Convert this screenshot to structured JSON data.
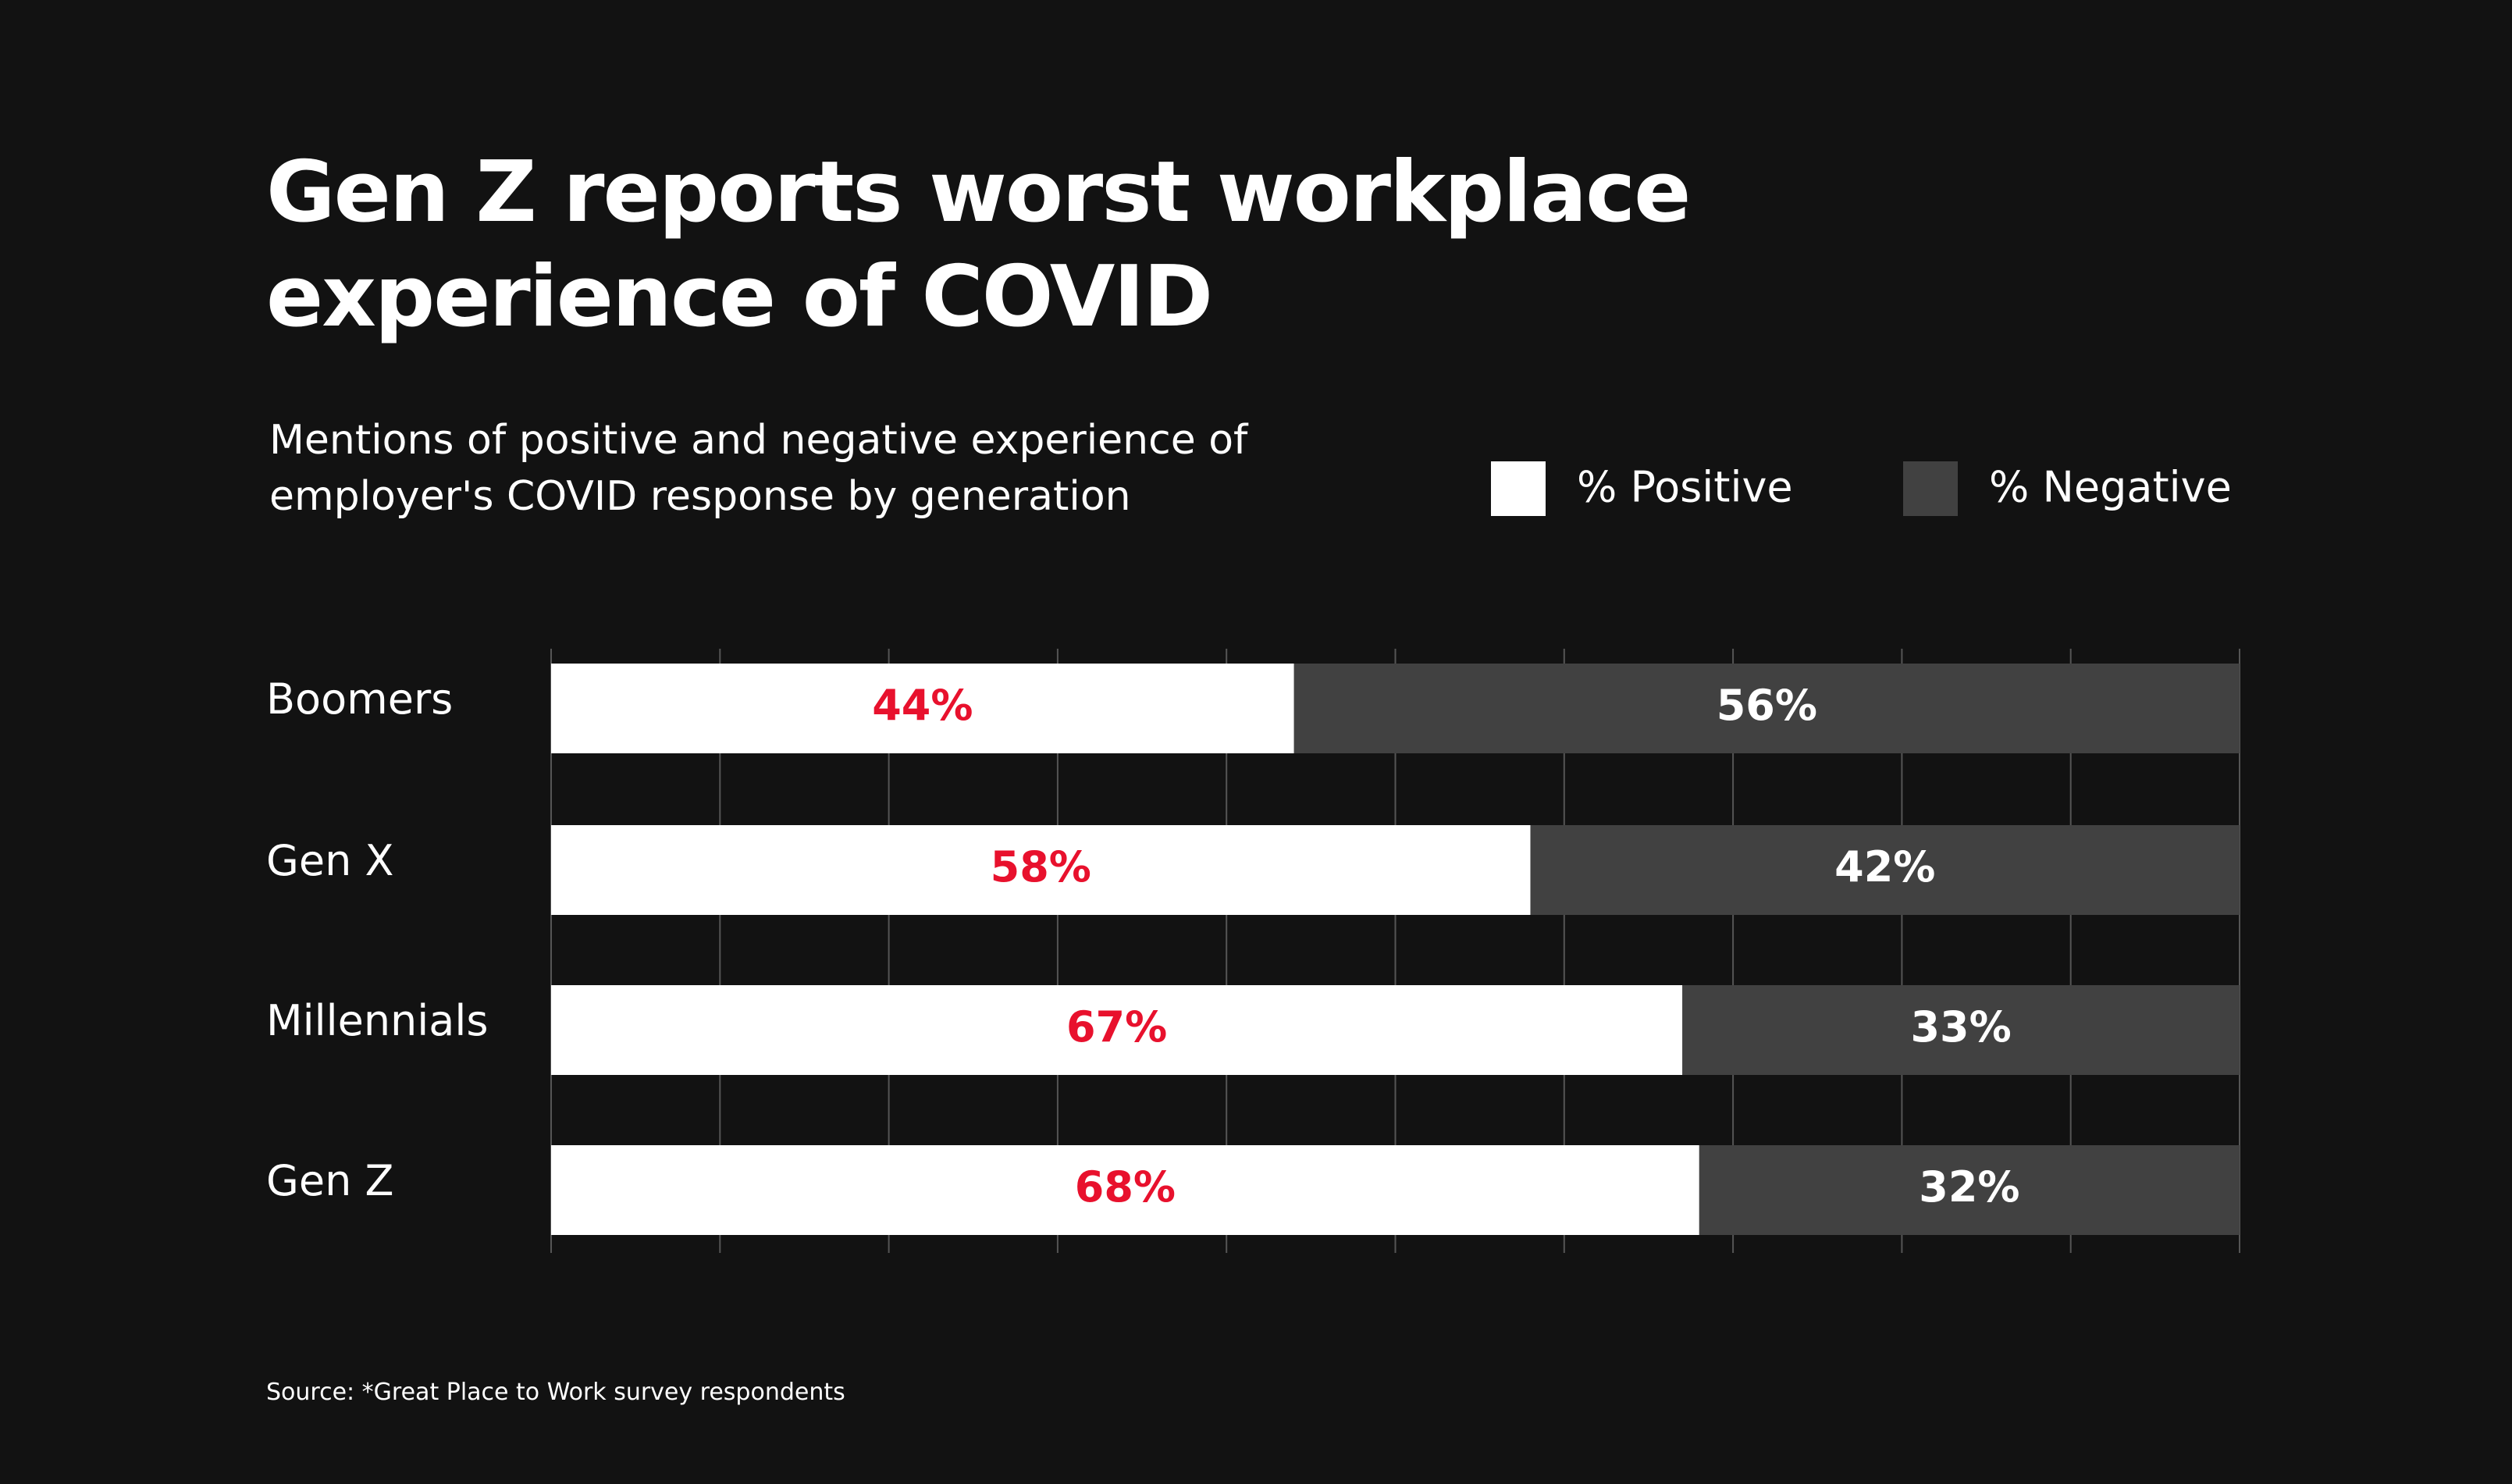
{
  "chart_data": {
    "type": "stacked-bar-horizontal",
    "title": "Gen Z reports worst workplace experience of COVID",
    "subtitle": "Mentions of positive and negative experience of employer's COVID response by generation",
    "source": "Source: *Great Place to Work survey respondents",
    "categories": [
      "Boomers",
      "Gen X",
      "Millennials",
      "Gen Z"
    ],
    "series": [
      {
        "name": "% Positive",
        "color": "#ffffff",
        "label_color": "#e8112d",
        "values": [
          44,
          58,
          67,
          68
        ],
        "value_labels": [
          "44%",
          "58%",
          "67%",
          "68%"
        ]
      },
      {
        "name": "% Negative",
        "color": "#414141",
        "label_color": "#ffffff",
        "values": [
          56,
          42,
          33,
          32
        ],
        "value_labels": [
          "56%",
          "42%",
          "33%",
          "32%"
        ]
      }
    ],
    "xlim": [
      0,
      100
    ],
    "xticks": [
      0,
      10,
      20,
      30,
      40,
      50,
      60,
      70,
      80,
      90,
      100
    ],
    "grid": true
  }
}
